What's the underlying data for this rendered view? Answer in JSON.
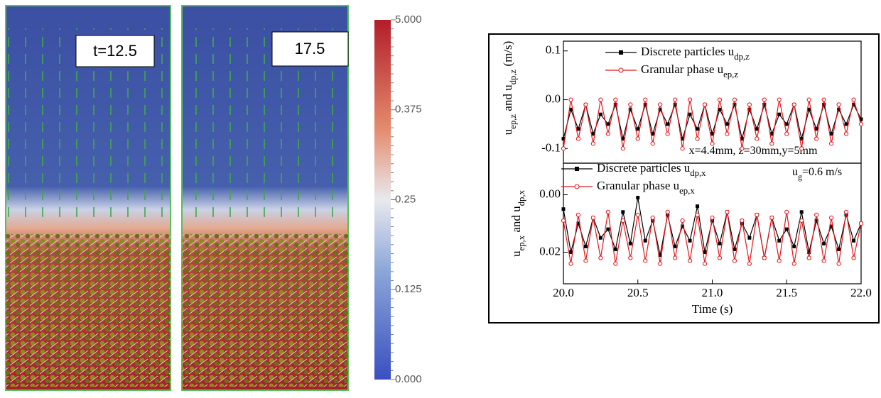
{
  "panels": [
    {
      "label": "t=12.5"
    },
    {
      "label": "17.5"
    }
  ],
  "colorbar": {
    "tick_labels": [
      "5.000",
      "0.375",
      "0.25",
      "0.125",
      "0.000"
    ]
  },
  "chart_data": [
    {
      "type": "line",
      "y_label": [
        {
          "text": "u"
        },
        {
          "text": "ep,z",
          "sub": true
        },
        {
          "text": " and u"
        },
        {
          "text": "dp,z",
          "sub": true
        },
        {
          "text": "   (m/s)"
        }
      ],
      "annotations": [
        [
          {
            "text": "x=4.4mm, z=30mm,y=5mm"
          }
        ]
      ],
      "x": [
        20.0,
        20.05,
        20.1,
        20.15,
        20.2,
        20.25,
        20.3,
        20.35,
        20.4,
        20.45,
        20.5,
        20.55,
        20.6,
        20.65,
        20.7,
        20.75,
        20.8,
        20.85,
        20.9,
        20.95,
        21.0,
        21.05,
        21.1,
        21.15,
        21.2,
        21.25,
        21.3,
        21.35,
        21.4,
        21.45,
        21.5,
        21.55,
        21.6,
        21.65,
        21.7,
        21.75,
        21.8,
        21.85,
        21.9,
        21.95,
        22.0
      ],
      "xlim": [
        20,
        22
      ],
      "ylim": [
        -0.13,
        0.12
      ],
      "yticks": [
        {
          "value": 0.1,
          "label": "0.1"
        },
        {
          "value": 0,
          "label": "0.0"
        },
        {
          "value": -0.1,
          "label": "-0.1"
        }
      ],
      "legend": "upper left",
      "series": [
        {
          "name": "Discrete particles u",
          "subscript": "dp,z",
          "color": "#000000",
          "marker": "square",
          "values": [
            -0.08,
            -0.02,
            -0.06,
            -0.01,
            -0.07,
            -0.03,
            -0.05,
            -0.01,
            -0.08,
            -0.02,
            -0.06,
            -0.01,
            -0.07,
            -0.02,
            -0.05,
            -0.01,
            -0.08,
            -0.03,
            -0.06,
            -0.01,
            -0.07,
            -0.02,
            -0.05,
            -0.01,
            -0.08,
            -0.02,
            -0.06,
            -0.01,
            -0.07,
            -0.03,
            -0.05,
            -0.01,
            -0.08,
            -0.02,
            -0.06,
            -0.01,
            -0.07,
            -0.02,
            -0.05,
            -0.01,
            -0.04
          ]
        },
        {
          "name": "Granular phase u",
          "subscript": "ep,z",
          "color": "#e8141a",
          "marker": "circle",
          "values": [
            -0.1,
            0,
            -0.08,
            -0.01,
            -0.09,
            0,
            -0.07,
            0,
            -0.1,
            -0.01,
            -0.08,
            0,
            -0.09,
            -0.01,
            -0.07,
            0,
            -0.1,
            0,
            -0.08,
            -0.01,
            -0.09,
            0,
            -0.07,
            0,
            -0.1,
            -0.01,
            -0.08,
            0,
            -0.09,
            0,
            -0.07,
            -0.01,
            -0.1,
            0,
            -0.08,
            0,
            -0.09,
            -0.01,
            -0.07,
            0,
            -0.05
          ]
        }
      ]
    },
    {
      "type": "line",
      "y_label": [
        {
          "text": "u"
        },
        {
          "text": "ep,x",
          "sub": true
        },
        {
          "text": " and u"
        },
        {
          "text": "dp,x",
          "sub": true
        }
      ],
      "annotations": [
        [
          {
            "text": "u"
          },
          {
            "text": "g",
            "sub": true
          },
          {
            "text": "=0.6 m/s"
          }
        ]
      ],
      "x_label": "Time (s)",
      "x": [
        20.0,
        20.05,
        20.1,
        20.15,
        20.2,
        20.25,
        20.3,
        20.35,
        20.4,
        20.45,
        20.5,
        20.55,
        20.6,
        20.65,
        20.7,
        20.75,
        20.8,
        20.85,
        20.9,
        20.95,
        21.0,
        21.05,
        21.1,
        21.15,
        21.2,
        21.25,
        21.3,
        21.35,
        21.4,
        21.45,
        21.5,
        21.55,
        21.6,
        21.65,
        21.7,
        21.75,
        21.8,
        21.85,
        21.9,
        21.95,
        22.0
      ],
      "xlim": [
        20,
        22
      ],
      "xticks": [
        {
          "value": 20,
          "label": "20.0"
        },
        {
          "value": 20.5,
          "label": "20.5"
        },
        {
          "value": 21,
          "label": "21.0"
        },
        {
          "value": 21.5,
          "label": "21.5"
        },
        {
          "value": 22,
          "label": "22.0"
        }
      ],
      "ylim": [
        -0.011,
        0.031
      ],
      "y_inverted": true,
      "yticks": [
        {
          "value": 0,
          "label": "0.00"
        },
        {
          "value": 0.02,
          "label": "0.02"
        }
      ],
      "legend": "upper left",
      "series": [
        {
          "name": "Discrete particles u",
          "subscript": "dp,x",
          "color": "#000000",
          "marker": "square",
          "values": [
            0.005,
            0.02,
            0.01,
            0.018,
            0.008,
            0.015,
            0.012,
            0.019,
            0.006,
            0.017,
            0.001,
            0.016,
            0.009,
            0.021,
            0.007,
            0.018,
            0.011,
            0.016,
            0.004,
            0.02,
            0.009,
            0.017,
            0.006,
            0.019,
            0.01,
            0.015,
            0.007,
            0.022,
            0.008,
            0.016,
            0.012,
            0.018,
            0.006,
            0.02,
            0.009,
            0.017,
            0.011,
            0.019,
            0.007,
            0.016,
            0.01
          ]
        },
        {
          "name": "Granular phase u",
          "subscript": "ep,x",
          "color": "#e8141a",
          "marker": "circle",
          "values": [
            0.009,
            0.024,
            0.007,
            0.023,
            0.008,
            0.022,
            0.006,
            0.024,
            0.009,
            0.022,
            0.007,
            0.023,
            0.008,
            0.024,
            0.006,
            0.022,
            0.009,
            0.023,
            0.007,
            0.024,
            0.008,
            0.022,
            0.006,
            0.023,
            0.009,
            0.024,
            0.007,
            0.022,
            0.008,
            0.023,
            0.006,
            0.024,
            0.009,
            0.022,
            0.007,
            0.023,
            0.008,
            0.024,
            0.006,
            0.022,
            0.01
          ]
        }
      ]
    }
  ]
}
